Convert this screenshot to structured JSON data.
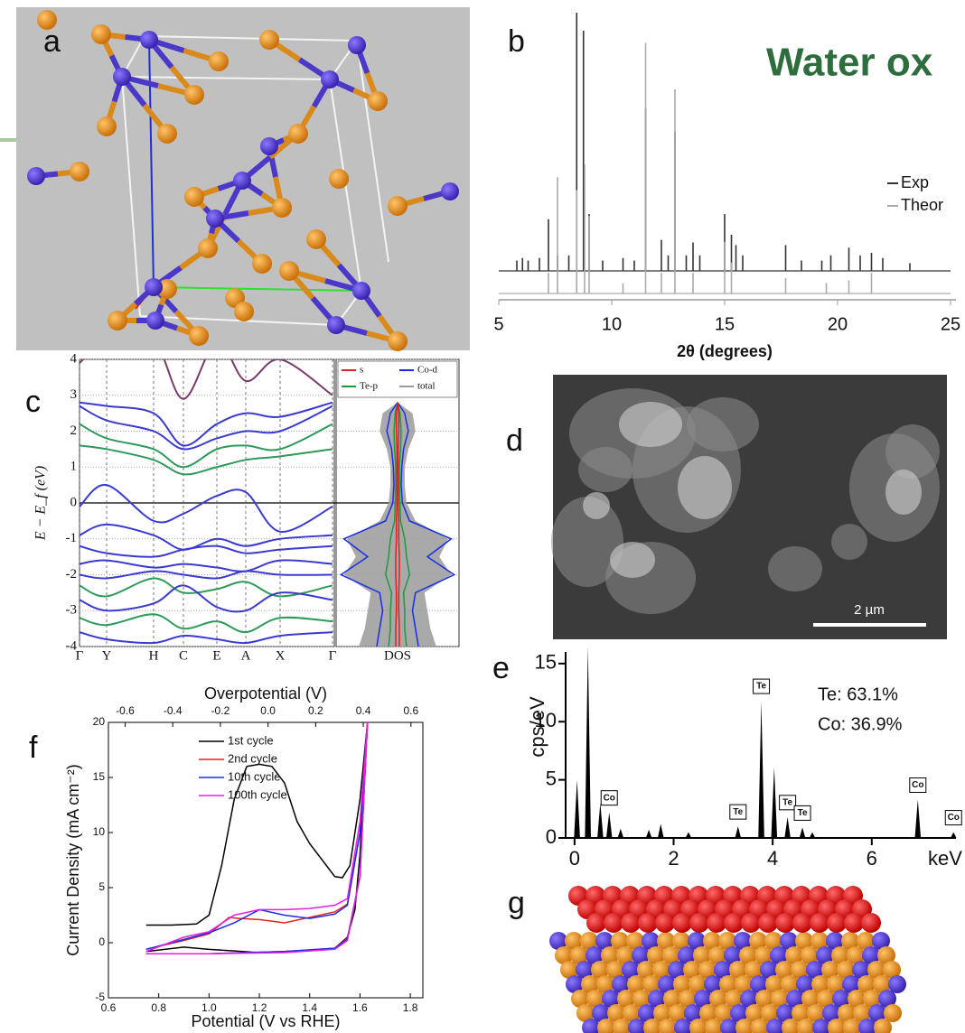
{
  "title": "Water ox",
  "panel_labels": [
    "a",
    "b",
    "c",
    "d",
    "e",
    "f",
    "g"
  ],
  "scale_bar": "2 µm",
  "chart_data": [
    {
      "type": "spectrum",
      "xlabel": "2θ (degrees)",
      "xlim": [
        5,
        25
      ],
      "xticks": [
        5,
        10,
        15,
        20,
        25
      ],
      "ylim": [
        0,
        100
      ],
      "series": [
        {
          "name": "Exp",
          "color": "#333333",
          "x": [
            5.8,
            6.05,
            6.3,
            6.8,
            7.2,
            7.6,
            8.1,
            8.45,
            8.75,
            9.0,
            9.6,
            10.5,
            11.0,
            11.5,
            12.2,
            12.5,
            12.8,
            13.3,
            13.6,
            13.9,
            15.0,
            15.3,
            15.5,
            15.8,
            17.7,
            18.4,
            19.3,
            19.7,
            20.5,
            21.0,
            21.5,
            22.0,
            23.2
          ],
          "values": [
            4,
            5,
            4,
            5,
            20,
            6,
            6,
            100,
            93,
            22,
            4,
            5,
            4,
            63,
            12,
            6,
            54,
            6,
            11,
            6,
            22,
            14,
            10,
            6,
            10,
            4,
            4,
            6,
            9,
            6,
            7,
            5,
            3
          ]
        },
        {
          "name": "Theor",
          "color": "#aaaaaa",
          "x": [
            7.2,
            7.6,
            8.45,
            8.8,
            9.0,
            10.5,
            11.5,
            12.2,
            12.8,
            13.6,
            15.0,
            15.3,
            17.7,
            19.5,
            20.5,
            21.5
          ],
          "values": [
            8,
            45,
            40,
            50,
            30,
            4,
            97,
            8,
            79,
            8,
            20,
            12,
            6,
            4,
            5,
            8
          ]
        }
      ]
    },
    {
      "type": "bands",
      "ylabel": "E − E_f (eV)",
      "categories": [
        "Γ",
        "Y",
        "H",
        "C",
        "E",
        "A",
        "X",
        "Γ"
      ],
      "ylim": [
        -4,
        4
      ],
      "yticks": [
        -4,
        -3,
        -2,
        -1,
        0,
        1,
        2,
        3,
        4
      ],
      "grid": true,
      "bands": [
        {
          "color": "#7a3a6a",
          "values": [
            3.9,
            4.5,
            4.5,
            2.9,
            4.5,
            3.4,
            4.0,
            3.0
          ]
        },
        {
          "color": "#3a3ad0",
          "values": [
            2.8,
            2.7,
            2.5,
            1.6,
            2.2,
            2.5,
            2.4,
            2.8
          ]
        },
        {
          "color": "#3a3ad0",
          "values": [
            2.7,
            2.3,
            2.0,
            1.5,
            1.8,
            2.0,
            2.0,
            2.7
          ]
        },
        {
          "color": "#2e9a5a",
          "values": [
            2.2,
            1.8,
            1.5,
            1.0,
            1.5,
            1.6,
            1.5,
            2.2
          ]
        },
        {
          "color": "#2e9a5a",
          "values": [
            1.6,
            1.5,
            1.2,
            0.8,
            1.0,
            1.2,
            1.3,
            1.5
          ]
        },
        {
          "color": "#3a3ad0",
          "values": [
            -0.1,
            0.5,
            -0.5,
            -0.3,
            0.2,
            0.3,
            -0.8,
            -0.1
          ]
        },
        {
          "color": "#3a3ad0",
          "values": [
            -0.9,
            -0.6,
            -0.9,
            -1.3,
            -1.0,
            -1.2,
            -1.0,
            -0.9
          ]
        },
        {
          "color": "#3a3ad0",
          "values": [
            -1.2,
            -1.4,
            -1.5,
            -1.3,
            -1.2,
            -1.4,
            -1.3,
            -1.2
          ]
        },
        {
          "color": "#3a3ad0",
          "values": [
            -1.7,
            -1.6,
            -1.8,
            -1.7,
            -1.8,
            -1.9,
            -1.6,
            -1.7
          ]
        },
        {
          "color": "#3a3ad0",
          "values": [
            -2.0,
            -2.1,
            -1.9,
            -2.0,
            -2.1,
            -1.9,
            -2.0,
            -2.0
          ]
        },
        {
          "color": "#2e9a5a",
          "values": [
            -2.3,
            -2.6,
            -2.1,
            -2.5,
            -2.4,
            -2.2,
            -2.6,
            -2.3
          ]
        },
        {
          "color": "#3a3ad0",
          "values": [
            -2.7,
            -3.0,
            -2.8,
            -2.3,
            -2.9,
            -3.0,
            -2.5,
            -2.7
          ]
        },
        {
          "color": "#2e9a5a",
          "values": [
            -3.2,
            -3.4,
            -3.1,
            -3.5,
            -3.3,
            -3.6,
            -3.2,
            -3.3
          ]
        },
        {
          "color": "#3a3ad0",
          "values": [
            -3.6,
            -3.8,
            -3.9,
            -3.7,
            -3.8,
            -3.9,
            -3.7,
            -3.6
          ]
        }
      ],
      "dos": {
        "label": "DOS",
        "xlim": [
          0,
          1
        ],
        "energies": [
          -4,
          -3.5,
          -3,
          -2.5,
          -2,
          -1.5,
          -1,
          -0.5,
          0,
          0.5,
          1,
          1.5,
          2,
          2.5,
          2.8
        ],
        "series": [
          {
            "name": "s",
            "color": "#e02020",
            "values": [
              0.03,
              0.03,
              0.02,
              0.02,
              0.03,
              0.03,
              0.02,
              0.02,
              0.01,
              0.01,
              0.01,
              0.01,
              0.02,
              0.02,
              0
            ]
          },
          {
            "name": "Co-d",
            "color": "#1a2ee0",
            "values": [
              0.35,
              0.3,
              0.25,
              0.3,
              0.95,
              0.5,
              0.9,
              0.2,
              0.08,
              0.06,
              0.07,
              0.1,
              0.18,
              0.12,
              0
            ]
          },
          {
            "name": "Te-p",
            "color": "#1e9a3a",
            "values": [
              0.15,
              0.12,
              0.12,
              0.1,
              0.2,
              0.15,
              0.12,
              0.05,
              0.04,
              0.03,
              0.03,
              0.05,
              0.06,
              0.04,
              0
            ]
          },
          {
            "name": "total",
            "color": "#9a9a9a",
            "values": [
              0.65,
              0.55,
              0.5,
              0.45,
              0.9,
              0.7,
              0.85,
              0.3,
              0.15,
              0.12,
              0.12,
              0.18,
              0.3,
              0.25,
              0
            ]
          }
        ]
      }
    },
    {
      "type": "area",
      "ylabel": "cps/eV",
      "x_unit": "keV",
      "xlim": [
        -0.18,
        7.7
      ],
      "xticks": [
        0,
        2,
        4,
        6
      ],
      "ylim": [
        0,
        16
      ],
      "yticks": [
        0,
        5,
        10,
        15
      ],
      "color": "#000000",
      "notes": [
        "Te: 63.1%",
        "Co: 36.9%"
      ],
      "x": [
        0.05,
        0.27,
        0.52,
        0.7,
        0.93,
        1.5,
        1.74,
        2.3,
        3.3,
        3.77,
        4.03,
        4.3,
        4.6,
        4.8,
        6.93,
        7.65
      ],
      "values": [
        5,
        16.5,
        3,
        2.2,
        0.8,
        0.7,
        1.2,
        0.5,
        1.0,
        11.8,
        6.1,
        1.8,
        0.9,
        0.5,
        3.3,
        0.5
      ],
      "peak_labels": [
        null,
        null,
        null,
        "Co",
        null,
        null,
        null,
        null,
        "Te",
        "Te",
        null,
        "Te",
        "Te",
        null,
        "Co",
        "Co"
      ]
    },
    {
      "type": "line",
      "xlabel": "Potential (V vs RHE)",
      "x2label": "Overpotential (V)",
      "ylabel": "Current Density (mA cm⁻²)",
      "xlim": [
        0.6,
        1.85
      ],
      "xticks": [
        0.6,
        0.8,
        {
          "value": 1,
          "label": "1.0"
        },
        1.2,
        1.4,
        1.6,
        1.8
      ],
      "x2lim": [
        -0.67,
        0.65
      ],
      "x2ticks": [
        -0.6,
        -0.4,
        -0.2,
        {
          "value": 0,
          "label": "0.0"
        },
        0.2,
        0.4,
        0.6
      ],
      "ylim": [
        -5,
        20
      ],
      "yticks": [
        -5,
        0,
        5,
        10,
        15,
        20
      ],
      "legend": "upper left",
      "series": [
        {
          "name": "1st cycle",
          "color": "#000000",
          "x": [
            0.75,
            0.85,
            0.95,
            1.0,
            1.05,
            1.1,
            1.15,
            1.2,
            1.25,
            1.3,
            1.35,
            1.4,
            1.45,
            1.5,
            1.53,
            1.56,
            1.6,
            1.63,
            1.62,
            1.6,
            1.58,
            1.55,
            1.5,
            1.4,
            1.2,
            1.0,
            0.9,
            0.75
          ],
          "values": [
            1.6,
            1.6,
            1.7,
            2.5,
            7,
            13,
            16,
            16.2,
            16,
            14.5,
            11,
            9,
            7.5,
            6,
            5.9,
            7,
            13,
            20,
            17,
            8,
            3,
            0.5,
            -0.5,
            -0.7,
            -0.9,
            -0.6,
            -0.4,
            -0.8
          ]
        },
        {
          "name": "2nd cycle",
          "color": "#e8221a",
          "x": [
            0.75,
            0.9,
            1.0,
            1.08,
            1.12,
            1.2,
            1.3,
            1.4,
            1.5,
            1.55,
            1.6,
            1.63,
            1.6,
            1.55,
            1.5,
            1.3,
            1.0,
            0.75
          ],
          "values": [
            -0.6,
            0.2,
            0.8,
            2.3,
            2.2,
            2.1,
            1.8,
            2.3,
            2.8,
            3.5,
            10,
            20,
            6,
            0.4,
            -0.5,
            -0.8,
            -1.0,
            -1.0
          ]
        },
        {
          "name": "10th cycle",
          "color": "#1a2ee8",
          "x": [
            0.75,
            0.9,
            1.0,
            1.1,
            1.2,
            1.3,
            1.4,
            1.5,
            1.55,
            1.6,
            1.63,
            1.6,
            1.55,
            1.5,
            1.3,
            1.0,
            0.75
          ],
          "values": [
            -0.6,
            0.3,
            0.9,
            1.8,
            3.0,
            2.5,
            2.2,
            2.6,
            3.4,
            10,
            20,
            6,
            0.3,
            -0.5,
            -0.8,
            -1.0,
            -1.0
          ]
        },
        {
          "name": "100th cycle",
          "color": "#e61ee6",
          "x": [
            0.75,
            0.9,
            1.0,
            1.1,
            1.2,
            1.3,
            1.4,
            1.5,
            1.55,
            1.6,
            1.63,
            1.6,
            1.55,
            1.5,
            1.3,
            1.0,
            0.75
          ],
          "values": [
            -0.8,
            0.5,
            1.0,
            2.5,
            3.0,
            3.0,
            3.1,
            3.4,
            4.0,
            11,
            20,
            6,
            0.2,
            -0.6,
            -0.9,
            -1.0,
            -1.0
          ]
        }
      ]
    }
  ]
}
